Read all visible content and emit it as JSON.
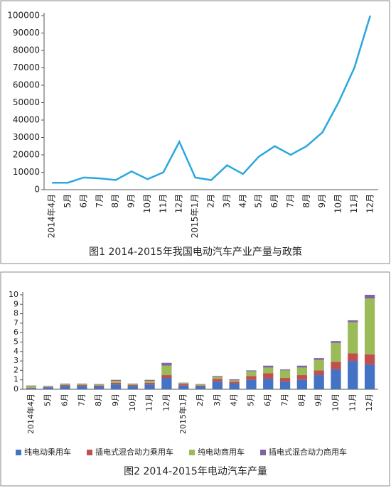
{
  "chart_data": [
    {
      "type": "line",
      "title": "图1 2014-2015年我国电动汽车产业产量与政策",
      "categories": [
        "2014年4月",
        "5月",
        "6月",
        "7月",
        "8月",
        "9月",
        "10月",
        "11月",
        "12月",
        "2015年1月",
        "2月",
        "3月",
        "4月",
        "5月",
        "6月",
        "7月",
        "8月",
        "9月",
        "10月",
        "11月",
        "12月"
      ],
      "values": [
        4000,
        4000,
        7000,
        6500,
        5500,
        10500,
        6000,
        10000,
        27500,
        7000,
        5500,
        14000,
        9000,
        19000,
        25000,
        20000,
        25000,
        33000,
        50000,
        70000,
        100000
      ],
      "color": "#29a8e0",
      "ylim": [
        0,
        100000
      ],
      "yticks": [
        0,
        10000,
        20000,
        30000,
        40000,
        50000,
        60000,
        70000,
        80000,
        90000,
        100000
      ],
      "grid": false
    },
    {
      "type": "stacked_bar",
      "title": "图2  2014-2015年电动汽车产量",
      "categories": [
        "2014年4月",
        "5月",
        "6月",
        "7月",
        "8月",
        "9月",
        "10月",
        "11月",
        "12月",
        "2015年1月",
        "2月",
        "3月",
        "4月",
        "5月",
        "6月",
        "7月",
        "8月",
        "9月",
        "10月",
        "11月",
        "12月"
      ],
      "series": [
        {
          "name": "纯电动乘用车",
          "color": "#4472c4",
          "values": [
            0.1,
            0.2,
            0.35,
            0.35,
            0.3,
            0.5,
            0.35,
            0.5,
            1.2,
            0.4,
            0.3,
            0.8,
            0.6,
            1.0,
            1.1,
            0.8,
            1.0,
            1.5,
            2.1,
            3.0,
            2.6
          ]
        },
        {
          "name": "插电式混合动力乘用车",
          "color": "#c0504d",
          "values": [
            0.05,
            0.05,
            0.1,
            0.1,
            0.1,
            0.2,
            0.1,
            0.2,
            0.3,
            0.15,
            0.1,
            0.3,
            0.2,
            0.4,
            0.6,
            0.4,
            0.5,
            0.5,
            0.8,
            0.8,
            1.1
          ]
        },
        {
          "name": "纯电动商用车",
          "color": "#9bbb59",
          "values": [
            0.2,
            0.05,
            0.1,
            0.1,
            0.1,
            0.2,
            0.1,
            0.2,
            1.0,
            0.1,
            0.1,
            0.2,
            0.15,
            0.5,
            0.6,
            0.8,
            0.8,
            1.1,
            2.0,
            3.3,
            5.9
          ]
        },
        {
          "name": "插电式混合动力商用车",
          "color": "#8064a2",
          "values": [
            0.05,
            0.05,
            0.05,
            0.05,
            0.05,
            0.1,
            0.05,
            0.1,
            0.3,
            0.05,
            0.05,
            0.1,
            0.1,
            0.1,
            0.2,
            0.1,
            0.2,
            0.2,
            0.2,
            0.2,
            0.4
          ]
        }
      ],
      "ylim": [
        0,
        10
      ],
      "yticks": [
        0,
        1,
        2,
        3,
        4,
        5,
        6,
        7,
        8,
        9,
        10
      ],
      "grid": false
    }
  ]
}
